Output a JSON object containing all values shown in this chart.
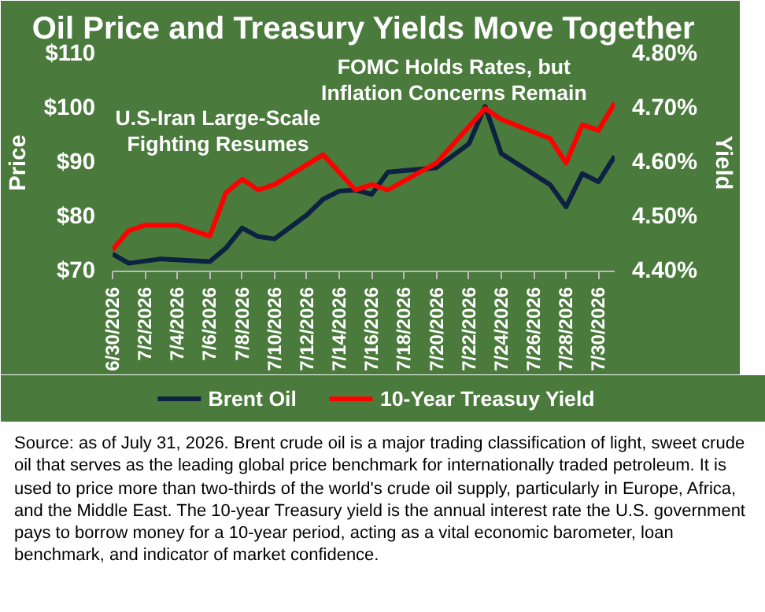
{
  "chart_data": {
    "type": "line",
    "title": "Oil Price and Treasury Yields Move Together",
    "ylabel": "Price",
    "y2label": "Yield",
    "xlim": [
      "2026-06-30",
      "2026-07-31"
    ],
    "xticks": [
      {
        "value": "2026-06-30",
        "label": "6/30/2026"
      },
      {
        "value": "2026-07-02",
        "label": "7/2/2026"
      },
      {
        "value": "2026-07-04",
        "label": "7/4/2026"
      },
      {
        "value": "2026-07-06",
        "label": "7/6/2026"
      },
      {
        "value": "2026-07-08",
        "label": "7/8/2026"
      },
      {
        "value": "2026-07-10",
        "label": "7/10/2026"
      },
      {
        "value": "2026-07-12",
        "label": "7/12/2026"
      },
      {
        "value": "2026-07-14",
        "label": "7/14/2026"
      },
      {
        "value": "2026-07-16",
        "label": "7/16/2026"
      },
      {
        "value": "2026-07-18",
        "label": "7/18/2026"
      },
      {
        "value": "2026-07-20",
        "label": "7/20/2026"
      },
      {
        "value": "2026-07-22",
        "label": "7/22/2026"
      },
      {
        "value": "2026-07-24",
        "label": "7/24/2026"
      },
      {
        "value": "2026-07-26",
        "label": "7/26/2026"
      },
      {
        "value": "2026-07-28",
        "label": "7/28/2026"
      },
      {
        "value": "2026-07-30",
        "label": "7/30/2026"
      }
    ],
    "ylim": [
      70,
      110
    ],
    "yticks": [
      {
        "value": 70,
        "label": "$70"
      },
      {
        "value": 80,
        "label": "$80"
      },
      {
        "value": 90,
        "label": "$90"
      },
      {
        "value": 100,
        "label": "$100"
      },
      {
        "value": 110,
        "label": "$110"
      }
    ],
    "y2lim": [
      4.4,
      4.8
    ],
    "y2ticks": [
      {
        "value": 4.4,
        "label": "4.40%"
      },
      {
        "value": 4.5,
        "label": "4.50%"
      },
      {
        "value": 4.6,
        "label": "4.60%"
      },
      {
        "value": 4.7,
        "label": "4.70%"
      },
      {
        "value": 4.8,
        "label": "4.80%"
      }
    ],
    "series": [
      {
        "name": "Brent Oil",
        "color": "#0d2240",
        "x": [
          "2026-06-30",
          "2026-07-01",
          "2026-07-03",
          "2026-07-06",
          "2026-07-07",
          "2026-07-08",
          "2026-07-09",
          "2026-07-10",
          "2026-07-12",
          "2026-07-13",
          "2026-07-14",
          "2026-07-15",
          "2026-07-16",
          "2026-07-17",
          "2026-07-20",
          "2026-07-22",
          "2026-07-23",
          "2026-07-24",
          "2026-07-27",
          "2026-07-28",
          "2026-07-29",
          "2026-07-30",
          "2026-07-31"
        ],
        "values": [
          73.2,
          71.5,
          72.3,
          71.8,
          74.3,
          78,
          76.4,
          76,
          80.4,
          83.3,
          84.8,
          85,
          84.2,
          88.3,
          89.1,
          93.5,
          100.4,
          91.7,
          86,
          81.9,
          88,
          86.5,
          91.2
        ]
      },
      {
        "name": "10-Year Treasuy Yield",
        "color": "#ff0000",
        "axis": "y2",
        "x": [
          "2026-06-30",
          "2026-07-01",
          "2026-07-02",
          "2026-07-04",
          "2026-07-06",
          "2026-07-07",
          "2026-07-08",
          "2026-07-09",
          "2026-07-10",
          "2026-07-13",
          "2026-07-15",
          "2026-07-16",
          "2026-07-17",
          "2026-07-20",
          "2026-07-23",
          "2026-07-24",
          "2026-07-27",
          "2026-07-28",
          "2026-07-29",
          "2026-07-30",
          "2026-07-31"
        ],
        "values": [
          4.44,
          4.475,
          4.485,
          4.485,
          4.465,
          4.545,
          4.57,
          4.55,
          4.56,
          4.615,
          4.55,
          4.56,
          4.55,
          4.6,
          4.7,
          4.68,
          4.645,
          4.6,
          4.67,
          4.66,
          4.71
        ]
      }
    ],
    "annotations": [
      "U.S-Iran Large-Scale\nFighting Resumes",
      "FOMC Holds Rates, but\nInflation Concerns Remain",
      "Source: as of July 31, 2026. Brent crude oil is a major trading classification of light, sweet crude oil that serves as the leading global price benchmark for internationally traded petroleum. It is used to price more than two-thirds of the world's crude oil supply, particularly in Europe, Africa, and the Middle East. The 10-year Treasury yield is the annual interest rate the U.S. government pays to borrow money for a 10-year period, acting as a vital economic barometer, loan benchmark, and indicator of market confidence."
    ],
    "grid": false,
    "legend": "bottom",
    "line_style": "solid",
    "marker": "none"
  }
}
